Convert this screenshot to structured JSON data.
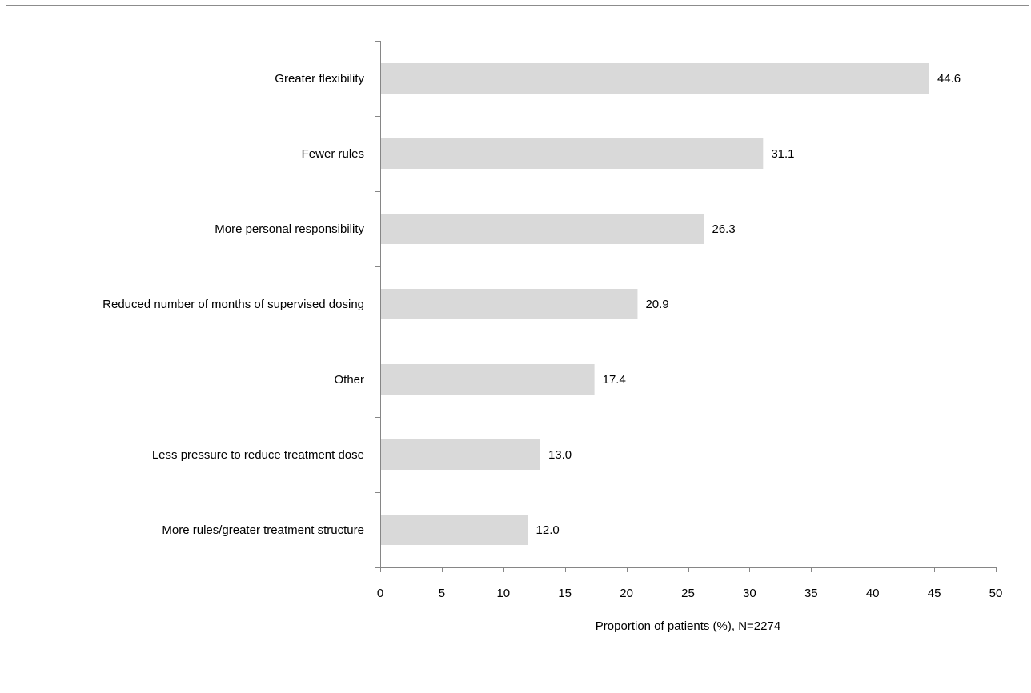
{
  "chart_data": {
    "type": "bar",
    "orientation": "horizontal",
    "categories": [
      "Greater flexibility",
      "Fewer rules",
      "More personal responsibility",
      "Reduced number of months of supervised dosing",
      "Other",
      "Less pressure to reduce treatment dose",
      "More rules/greater treatment structure"
    ],
    "values": [
      44.6,
      31.1,
      26.3,
      20.9,
      17.4,
      13.0,
      12.0
    ],
    "value_labels": [
      "44.6",
      "31.1",
      "26.3",
      "20.9",
      "17.4",
      "13.0",
      "12.0"
    ],
    "xlabel": "Proportion of patients (%), N=2274",
    "ylabel": "",
    "title": "",
    "xlim": [
      0,
      50
    ],
    "xticks": [
      0,
      5,
      10,
      15,
      20,
      25,
      30,
      35,
      40,
      45,
      50
    ],
    "xtick_labels": [
      "0",
      "5",
      "10",
      "15",
      "20",
      "25",
      "30",
      "35",
      "40",
      "45",
      "50"
    ],
    "bar_color": "#d9d9d9",
    "axis_color": "#868686",
    "grid": false,
    "legend": "none"
  }
}
